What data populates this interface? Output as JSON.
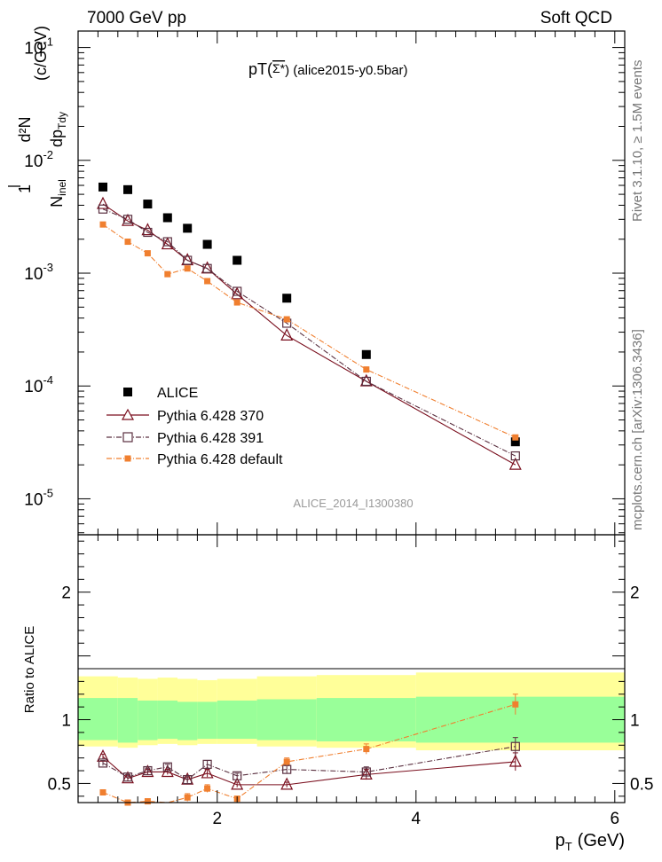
{
  "header": {
    "energy_label": "7000 GeV pp",
    "process_label": "Soft QCD",
    "title_main": "pT(",
    "title_particle": "Σ*",
    "title_rest": ") (alice2015-y0.5bar)",
    "watermark": "ALICE_2014_I1300380",
    "side_rivet": "Rivet 3.1.10, ≥ 1.5M events",
    "side_mcplots": "mcplots.cern.ch [arXiv:1306.3436]"
  },
  "axes": {
    "ylabel_one": "1",
    "ylabel_n": "N",
    "ylabel_n_sub": "inel",
    "ylabel_d2n": "d²N",
    "ylabel_dp": "dp",
    "ylabel_dp_sub": "Tdy",
    "ylabel_units": "(c/GeV)",
    "xlabel": "p",
    "xlabel_sub": "T",
    "xlabel_units": "(GeV)",
    "ratio_ylabel": "Ratio to ALICE"
  },
  "colors": {
    "data": "#000000",
    "p370": "#7a0f1e",
    "p391": "#5a3040",
    "pdef": "#f07f2f",
    "band_inner": "#99ff99",
    "band_outer": "#ffff99"
  },
  "chart_data": [
    {
      "type": "scatter",
      "panel": "main",
      "yscale": "log",
      "xlim": [
        0.6,
        6.1
      ],
      "ylim": [
        4.8e-06,
        0.14
      ],
      "ytick_labels": [
        "10^-5",
        "10^-4",
        "10^-3",
        "10^-2",
        "10^-1"
      ],
      "xtick_labels": [
        "2",
        "4",
        "6"
      ],
      "legend": {
        "placement": "bottom-left",
        "entries": [
          "ALICE",
          "Pythia 6.428 370",
          "Pythia 6.428 391",
          "Pythia 6.428 default"
        ]
      },
      "series": [
        {
          "name": "ALICE",
          "marker": "filled-square",
          "x": [
            0.85,
            1.1,
            1.3,
            1.5,
            1.7,
            1.9,
            2.2,
            2.7,
            3.5,
            5.0
          ],
          "y": [
            0.0058,
            0.0055,
            0.0041,
            0.0031,
            0.0025,
            0.0018,
            0.0013,
            0.0006,
            0.00019,
            3.2e-05
          ]
        },
        {
          "name": "Pythia 6.428 370",
          "marker": "open-triangle",
          "line": "solid",
          "x": [
            0.85,
            1.1,
            1.3,
            1.5,
            1.7,
            1.9,
            2.2,
            2.7,
            3.5,
            5.0
          ],
          "y": [
            0.0041,
            0.0029,
            0.0024,
            0.0018,
            0.0013,
            0.0011,
            0.00065,
            0.00028,
            0.00011,
            2e-05
          ]
        },
        {
          "name": "Pythia 6.428 391",
          "marker": "open-square",
          "line": "dashdot",
          "x": [
            0.85,
            1.1,
            1.3,
            1.5,
            1.7,
            1.9,
            2.2,
            2.7,
            3.5,
            5.0
          ],
          "y": [
            0.0037,
            0.003,
            0.0023,
            0.0019,
            0.0013,
            0.0011,
            0.00069,
            0.00036,
            0.00011,
            2.4e-05
          ]
        },
        {
          "name": "Pythia 6.428 default",
          "marker": "filled-small-square",
          "line": "dashdot",
          "x": [
            0.85,
            1.1,
            1.3,
            1.5,
            1.7,
            1.9,
            2.2,
            2.7,
            3.5,
            5.0
          ],
          "y": [
            0.0027,
            0.0019,
            0.0015,
            0.00098,
            0.0011,
            0.00085,
            0.00055,
            0.00039,
            0.00014,
            3.5e-05
          ]
        }
      ]
    },
    {
      "type": "line",
      "panel": "ratio",
      "ylim": [
        0.35,
        2.45
      ],
      "xlim": [
        0.6,
        6.1
      ],
      "ytick_labels": [
        "0.5",
        "1",
        "2"
      ],
      "xtick_labels": [
        "2",
        "4",
        "6"
      ],
      "bands": {
        "edges": [
          0.6,
          1.0,
          1.2,
          1.4,
          1.6,
          1.8,
          2.0,
          2.4,
          3.0,
          4.0,
          6.1
        ],
        "inner_low": [
          0.84,
          0.82,
          0.84,
          0.85,
          0.84,
          0.85,
          0.85,
          0.84,
          0.83,
          0.82
        ],
        "inner_high": [
          1.17,
          1.17,
          1.15,
          1.15,
          1.14,
          1.14,
          1.15,
          1.16,
          1.17,
          1.18
        ],
        "outer_low": [
          0.79,
          0.78,
          0.8,
          0.81,
          0.8,
          0.81,
          0.81,
          0.79,
          0.78,
          0.76
        ],
        "outer_high": [
          1.34,
          1.33,
          1.32,
          1.33,
          1.32,
          1.31,
          1.32,
          1.34,
          1.35,
          1.37
        ]
      },
      "series": [
        {
          "name": "Pythia 6.428 370",
          "x": [
            0.85,
            1.1,
            1.3,
            1.5,
            1.7,
            1.9,
            2.2,
            2.7,
            3.5,
            5.0
          ],
          "y": [
            0.71,
            0.54,
            0.59,
            0.59,
            0.53,
            0.58,
            0.49,
            0.49,
            0.57,
            0.67
          ],
          "err": [
            0.02,
            0.02,
            0.02,
            0.02,
            0.02,
            0.03,
            0.02,
            0.02,
            0.04,
            0.07
          ]
        },
        {
          "name": "Pythia 6.428 391",
          "x": [
            0.85,
            1.1,
            1.3,
            1.5,
            1.7,
            1.9,
            2.2,
            2.7,
            3.5,
            5.0
          ],
          "y": [
            0.66,
            0.55,
            0.6,
            0.63,
            0.53,
            0.65,
            0.56,
            0.61,
            0.59,
            0.79
          ],
          "err": [
            0.02,
            0.02,
            0.02,
            0.02,
            0.03,
            0.03,
            0.02,
            0.03,
            0.04,
            0.07
          ]
        },
        {
          "name": "Pythia 6.428 default",
          "x": [
            0.85,
            1.1,
            1.3,
            1.5,
            1.7,
            1.9,
            2.2,
            2.7,
            3.5,
            5.0
          ],
          "y": [
            0.43,
            0.35,
            0.36,
            0.32,
            0.39,
            0.46,
            0.38,
            0.67,
            0.77,
            1.12
          ],
          "err": [
            0.02,
            0.02,
            0.02,
            0.02,
            0.03,
            0.03,
            0.02,
            0.03,
            0.04,
            0.08
          ]
        }
      ]
    }
  ]
}
